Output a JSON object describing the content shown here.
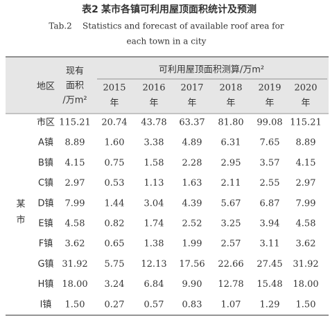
{
  "caption": {
    "label": "表2",
    "title": "某市各镇可利用屋顶面积统计及预测",
    "en_lines": [
      "Tab.2    Statistics and forecast of available roof area for",
      "each town in a city"
    ]
  },
  "table": {
    "group": "某市",
    "header": {
      "region": "地区",
      "current_area": [
        "现有",
        "面积",
        "/万m²"
      ],
      "forecast": "可利用屋顶面积测算/万m²",
      "years": [
        [
          "2015",
          "年"
        ],
        [
          "2016",
          "年"
        ],
        [
          "2017",
          "年"
        ],
        [
          "2018",
          "年"
        ],
        [
          "2019",
          "年"
        ],
        [
          "2020",
          "年"
        ]
      ]
    },
    "rows": [
      [
        "市区",
        "115.21",
        "20.74",
        "43.78",
        "63.37",
        "81.80",
        "99.08",
        "115.21"
      ],
      [
        "A镇",
        "8.89",
        "1.60",
        "3.38",
        "4.89",
        "6.31",
        "7.65",
        "8.89"
      ],
      [
        "B镇",
        "4.15",
        "0.75",
        "1.58",
        "2.28",
        "2.95",
        "3.57",
        "4.15"
      ],
      [
        "C镇",
        "2.97",
        "0.53",
        "1.13",
        "1.63",
        "2.11",
        "2.55",
        "2.97"
      ],
      [
        "D镇",
        "7.99",
        "1.44",
        "3.04",
        "4.39",
        "5.67",
        "6.87",
        "7.99"
      ],
      [
        "E镇",
        "4.58",
        "0.82",
        "1.74",
        "2.52",
        "3.25",
        "3.94",
        "4.58"
      ],
      [
        "F镇",
        "3.62",
        "0.65",
        "1.38",
        "1.99",
        "2.57",
        "3.11",
        "3.62"
      ],
      [
        "G镇",
        "31.92",
        "5.75",
        "12.13",
        "17.56",
        "22.66",
        "27.45",
        "31.92"
      ],
      [
        "H镇",
        "18.00",
        "3.24",
        "6.84",
        "9.90",
        "12.78",
        "15.48",
        "18.00"
      ],
      [
        "I镇",
        "1.50",
        "0.27",
        "0.57",
        "0.83",
        "1.07",
        "1.29",
        "1.50"
      ]
    ]
  }
}
